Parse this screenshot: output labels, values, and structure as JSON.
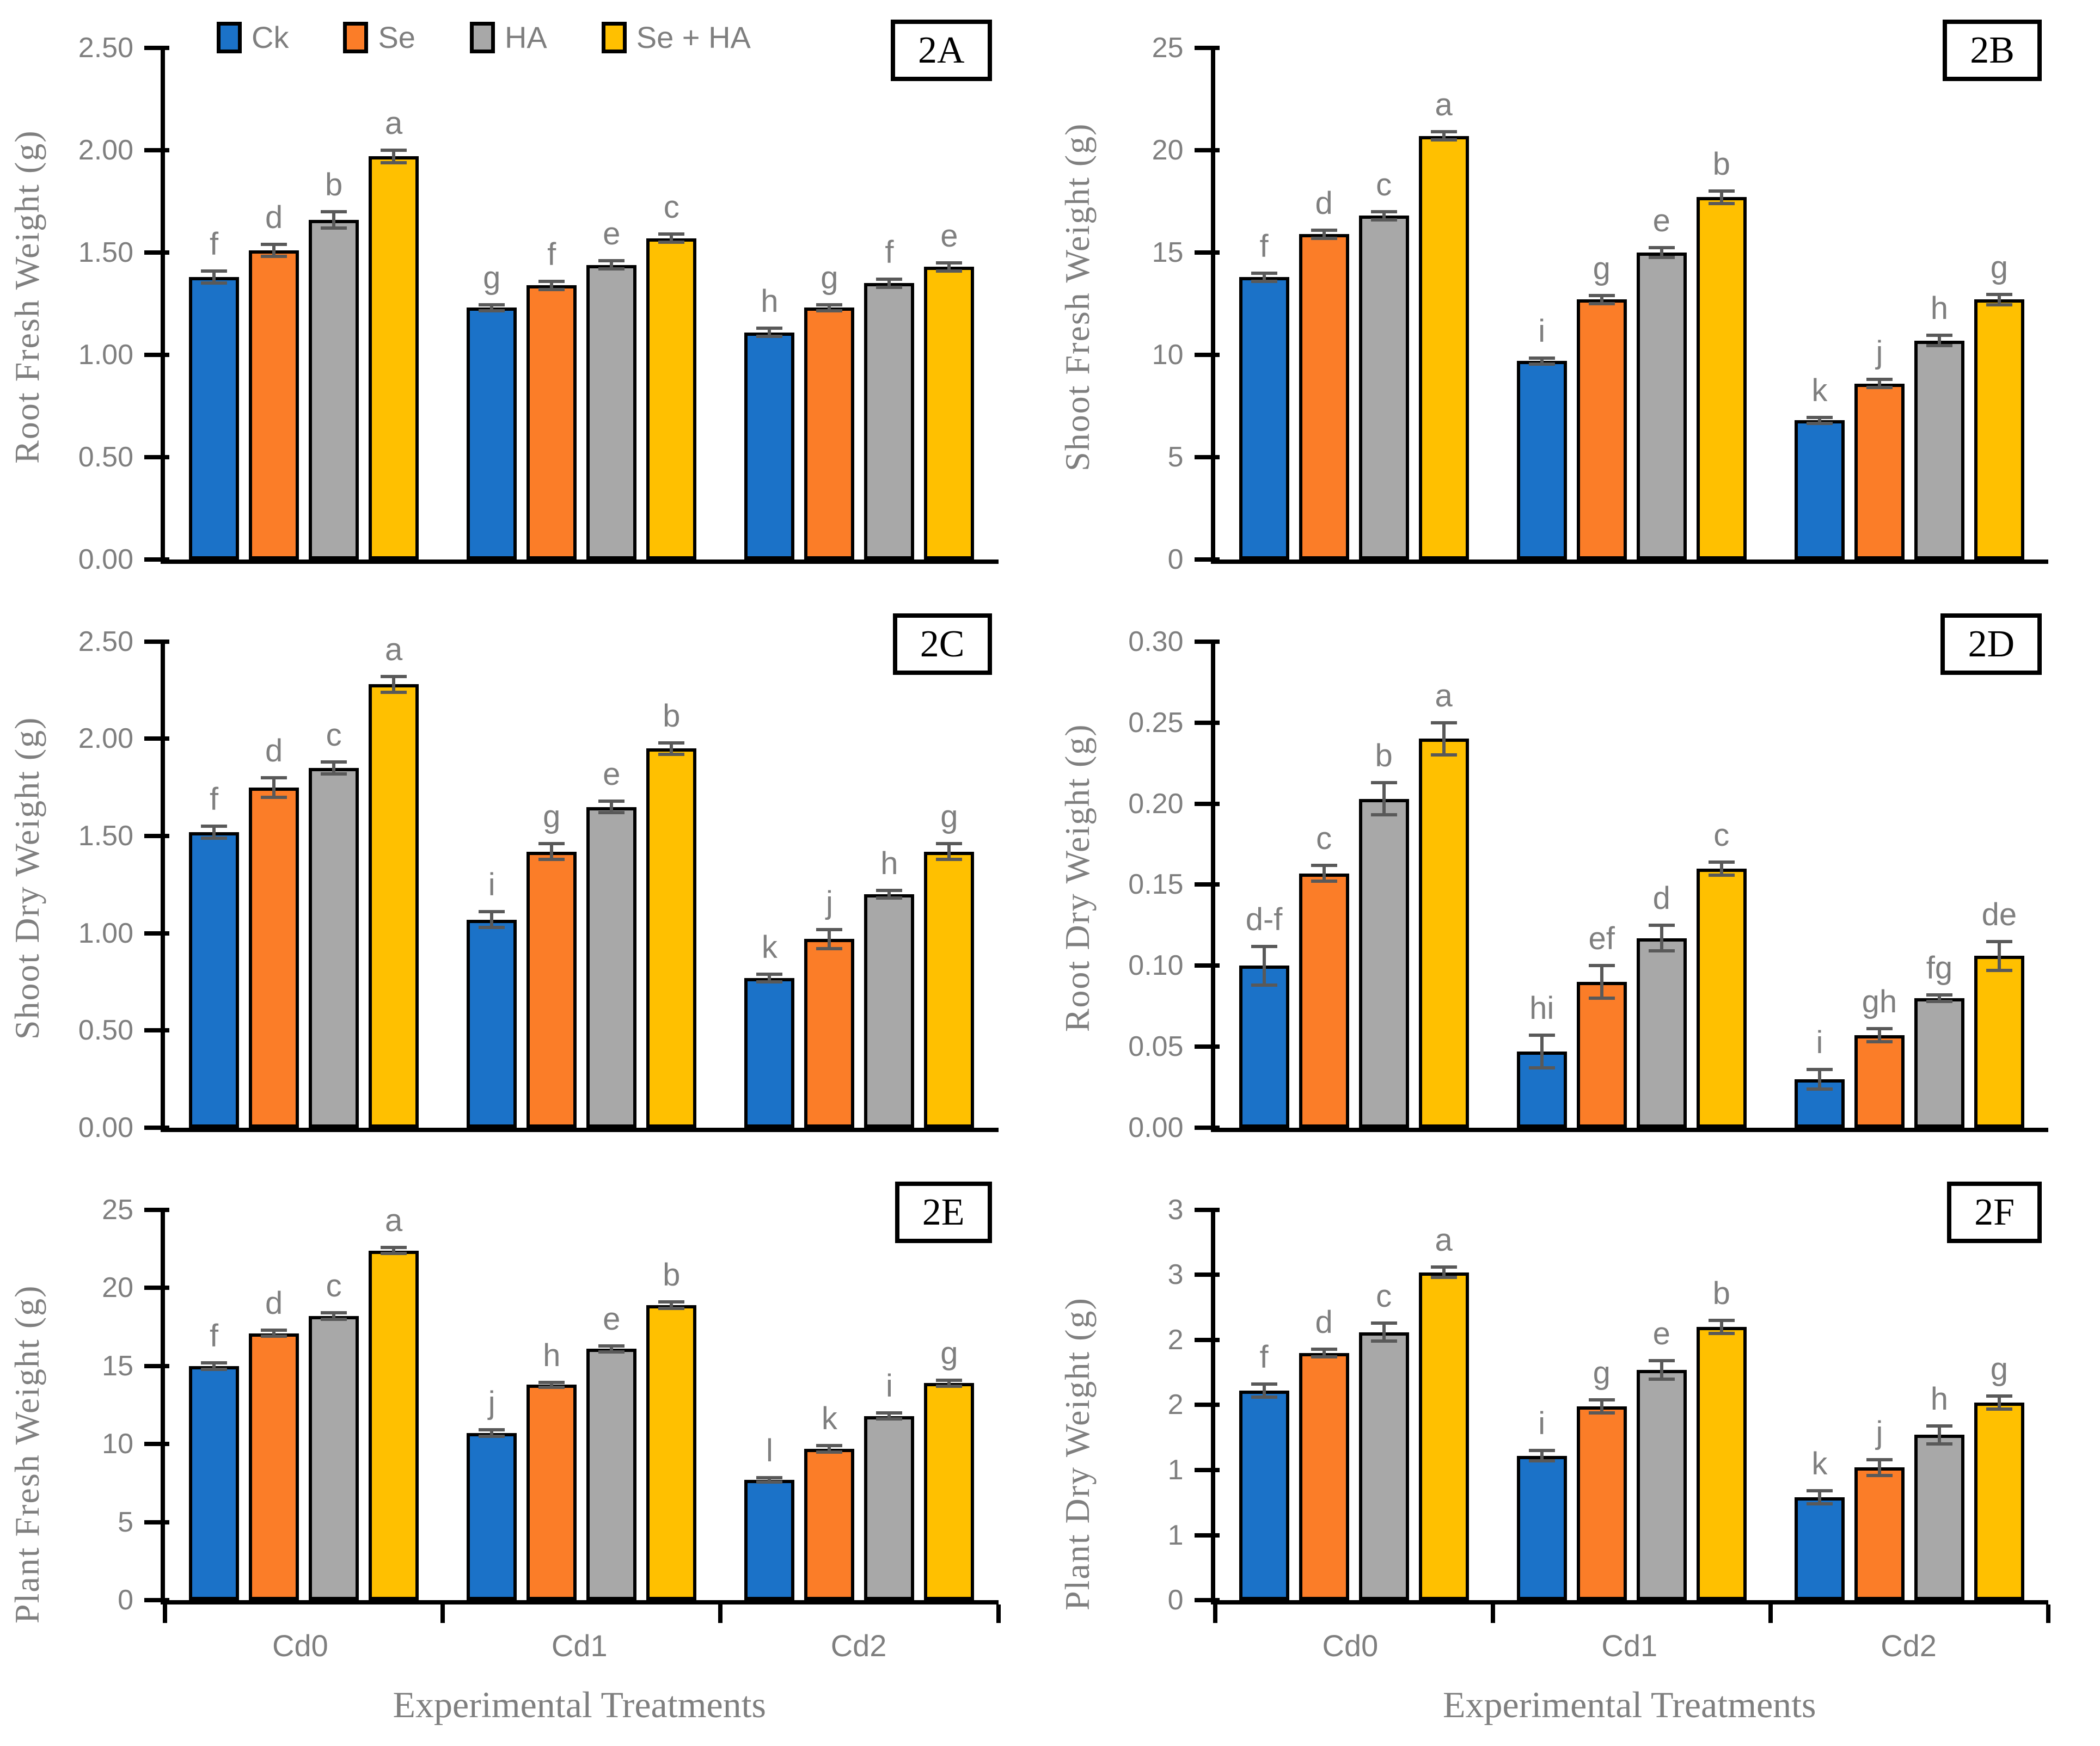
{
  "figure": {
    "x_title": "Experimental Treatments",
    "categories": [
      "Cd0",
      "Cd1",
      "Cd2"
    ],
    "series_names": [
      "Ck",
      "Se",
      "HA",
      "Se + HA"
    ],
    "series_colors": [
      "#1b72c8",
      "#fb7d28",
      "#a8a8a8",
      "#ffc000"
    ],
    "bar_border_color": "#000000",
    "error_bar_color": "#595959",
    "text_color": "#7f7f7f",
    "legend": [
      {
        "label": "Ck",
        "color": "#1b72c8"
      },
      {
        "label": "Se",
        "color": "#fb7d28"
      },
      {
        "label": "HA",
        "color": "#a8a8a8"
      },
      {
        "label": "Se + HA",
        "color": "#ffc000"
      }
    ]
  },
  "chart_data": [
    {
      "id": "2A",
      "type": "bar",
      "title": "2A",
      "ylabel": "Root Fresh Weight (g)",
      "ylim": [
        0,
        2.5
      ],
      "grid": false,
      "legend_position": "top-left-inside",
      "yticks": {
        "values": [
          0,
          0.5,
          1.0,
          1.5,
          2.0,
          2.5
        ],
        "labels": [
          "0.00",
          "0.50",
          "1.00",
          "1.50",
          "2.00",
          "2.50"
        ]
      },
      "categories": [
        "Cd0",
        "Cd1",
        "Cd2"
      ],
      "show_legend": true,
      "show_x_labels": false,
      "series": [
        {
          "name": "Ck",
          "values": [
            1.38,
            1.23,
            1.11
          ],
          "errors": [
            0.03,
            0.015,
            0.02
          ],
          "letters": [
            "f",
            "g",
            "h"
          ]
        },
        {
          "name": "Se",
          "values": [
            1.51,
            1.34,
            1.23
          ],
          "errors": [
            0.03,
            0.02,
            0.015
          ],
          "letters": [
            "d",
            "f",
            "g"
          ]
        },
        {
          "name": "HA",
          "values": [
            1.66,
            1.44,
            1.35
          ],
          "errors": [
            0.04,
            0.02,
            0.02
          ],
          "letters": [
            "b",
            "e",
            "f"
          ]
        },
        {
          "name": "Se + HA",
          "values": [
            1.97,
            1.57,
            1.43
          ],
          "errors": [
            0.03,
            0.02,
            0.02
          ],
          "letters": [
            "a",
            "c",
            "e"
          ]
        }
      ]
    },
    {
      "id": "2B",
      "type": "bar",
      "title": "2B",
      "ylabel": "Shoot Fresh Weight (g)",
      "ylim": [
        0,
        25
      ],
      "grid": false,
      "yticks": {
        "values": [
          0,
          5,
          10,
          15,
          20,
          25
        ],
        "labels": [
          "0",
          "5",
          "10",
          "15",
          "20",
          "25"
        ]
      },
      "categories": [
        "Cd0",
        "Cd1",
        "Cd2"
      ],
      "show_legend": false,
      "show_x_labels": false,
      "series": [
        {
          "name": "Ck",
          "values": [
            13.8,
            9.7,
            6.8
          ],
          "errors": [
            0.2,
            0.15,
            0.15
          ],
          "letters": [
            "f",
            "i",
            "k"
          ]
        },
        {
          "name": "Se",
          "values": [
            15.9,
            12.7,
            8.6
          ],
          "errors": [
            0.2,
            0.2,
            0.2
          ],
          "letters": [
            "d",
            "g",
            "j"
          ]
        },
        {
          "name": "HA",
          "values": [
            16.8,
            15.0,
            10.7
          ],
          "errors": [
            0.2,
            0.25,
            0.25
          ],
          "letters": [
            "c",
            "e",
            "h"
          ]
        },
        {
          "name": "Se + HA",
          "values": [
            20.7,
            17.7,
            12.7
          ],
          "errors": [
            0.2,
            0.3,
            0.25
          ],
          "letters": [
            "a",
            "b",
            "g"
          ]
        }
      ]
    },
    {
      "id": "2C",
      "type": "bar",
      "title": "2C",
      "ylabel": "Shoot Dry Weight (g)",
      "ylim": [
        0,
        2.5
      ],
      "grid": false,
      "yticks": {
        "values": [
          0,
          0.5,
          1.0,
          1.5,
          2.0,
          2.5
        ],
        "labels": [
          "0.00",
          "0.50",
          "1.00",
          "1.50",
          "2.00",
          "2.50"
        ]
      },
      "categories": [
        "Cd0",
        "Cd1",
        "Cd2"
      ],
      "show_legend": false,
      "show_x_labels": false,
      "series": [
        {
          "name": "Ck",
          "values": [
            1.52,
            1.07,
            0.77
          ],
          "errors": [
            0.03,
            0.04,
            0.02
          ],
          "letters": [
            "f",
            "i",
            "k"
          ]
        },
        {
          "name": "Se",
          "values": [
            1.75,
            1.42,
            0.97
          ],
          "errors": [
            0.05,
            0.04,
            0.05
          ],
          "letters": [
            "d",
            "g",
            "j"
          ]
        },
        {
          "name": "HA",
          "values": [
            1.85,
            1.65,
            1.2
          ],
          "errors": [
            0.03,
            0.03,
            0.02
          ],
          "letters": [
            "c",
            "e",
            "h"
          ]
        },
        {
          "name": "Se + HA",
          "values": [
            2.28,
            1.95,
            1.42
          ],
          "errors": [
            0.04,
            0.03,
            0.04
          ],
          "letters": [
            "a",
            "b",
            "g"
          ]
        }
      ]
    },
    {
      "id": "2D",
      "type": "bar",
      "title": "2D",
      "ylabel": "Root Dry Weight (g)",
      "ylim": [
        0,
        0.3
      ],
      "grid": false,
      "yticks": {
        "values": [
          0,
          0.05,
          0.1,
          0.15,
          0.2,
          0.25,
          0.3
        ],
        "labels": [
          "0.00",
          "0.05",
          "0.10",
          "0.15",
          "0.20",
          "0.25",
          "0.30"
        ]
      },
      "categories": [
        "Cd0",
        "Cd1",
        "Cd2"
      ],
      "show_legend": false,
      "show_x_labels": false,
      "series": [
        {
          "name": "Ck",
          "values": [
            0.1,
            0.047,
            0.03
          ],
          "errors": [
            0.012,
            0.01,
            0.006
          ],
          "letters": [
            "d-f",
            "hi",
            "i"
          ]
        },
        {
          "name": "Se",
          "values": [
            0.157,
            0.09,
            0.057
          ],
          "errors": [
            0.005,
            0.01,
            0.004
          ],
          "letters": [
            "c",
            "ef",
            "gh"
          ]
        },
        {
          "name": "HA",
          "values": [
            0.203,
            0.117,
            0.08
          ],
          "errors": [
            0.01,
            0.008,
            0.002
          ],
          "letters": [
            "b",
            "d",
            "fg"
          ]
        },
        {
          "name": "Se + HA",
          "values": [
            0.24,
            0.16,
            0.106
          ],
          "errors": [
            0.01,
            0.004,
            0.009
          ],
          "letters": [
            "a",
            "c",
            "de"
          ]
        }
      ]
    },
    {
      "id": "2E",
      "type": "bar",
      "title": "2E",
      "ylabel": "Plant Fresh Weight (g)",
      "ylim": [
        0,
        25
      ],
      "grid": false,
      "yticks": {
        "values": [
          0,
          5,
          10,
          15,
          20,
          25
        ],
        "labels": [
          "0",
          "5",
          "10",
          "15",
          "20",
          "25"
        ]
      },
      "categories": [
        "Cd0",
        "Cd1",
        "Cd2"
      ],
      "show_legend": false,
      "show_x_labels": true,
      "xlabel": "Experimental Treatments",
      "series": [
        {
          "name": "Ck",
          "values": [
            15.0,
            10.7,
            7.7
          ],
          "errors": [
            0.2,
            0.2,
            0.15
          ],
          "letters": [
            "f",
            "j",
            "l"
          ]
        },
        {
          "name": "Se",
          "values": [
            17.1,
            13.8,
            9.7
          ],
          "errors": [
            0.2,
            0.15,
            0.2
          ],
          "letters": [
            "d",
            "h",
            "k"
          ]
        },
        {
          "name": "HA",
          "values": [
            18.2,
            16.1,
            11.8
          ],
          "errors": [
            0.2,
            0.2,
            0.2
          ],
          "letters": [
            "c",
            "e",
            "i"
          ]
        },
        {
          "name": "Se + HA",
          "values": [
            22.4,
            18.9,
            13.9
          ],
          "errors": [
            0.2,
            0.2,
            0.2
          ],
          "letters": [
            "a",
            "b",
            "g"
          ]
        }
      ]
    },
    {
      "id": "2F",
      "type": "bar",
      "title": "2F",
      "ylabel": "Plant Dry Weight (g)",
      "ylim": [
        0,
        3.0
      ],
      "grid": false,
      "yticks": {
        "values": [
          0,
          0.5,
          1.0,
          1.5,
          2.0,
          2.5,
          3.0
        ],
        "labels": [
          "0",
          "1",
          "1",
          "2",
          "2",
          "3",
          "3"
        ]
      },
      "categories": [
        "Cd0",
        "Cd1",
        "Cd2"
      ],
      "show_legend": false,
      "show_x_labels": true,
      "xlabel": "Experimental Treatments",
      "series": [
        {
          "name": "Ck",
          "values": [
            1.61,
            1.11,
            0.79
          ],
          "errors": [
            0.05,
            0.04,
            0.05
          ],
          "letters": [
            "f",
            "i",
            "k"
          ]
        },
        {
          "name": "Se",
          "values": [
            1.9,
            1.49,
            1.02
          ],
          "errors": [
            0.03,
            0.05,
            0.06
          ],
          "letters": [
            "d",
            "g",
            "j"
          ]
        },
        {
          "name": "HA",
          "values": [
            2.06,
            1.77,
            1.27
          ],
          "errors": [
            0.07,
            0.07,
            0.07
          ],
          "letters": [
            "c",
            "e",
            "h"
          ]
        },
        {
          "name": "Se + HA",
          "values": [
            2.52,
            2.1,
            1.52
          ],
          "errors": [
            0.04,
            0.05,
            0.05
          ],
          "letters": [
            "a",
            "b",
            "g"
          ]
        }
      ]
    }
  ]
}
